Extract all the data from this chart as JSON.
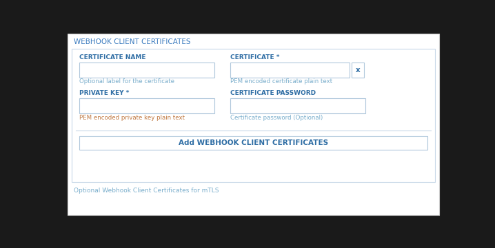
{
  "bg_color": "#1a1a1a",
  "panel_bg": "#ffffff",
  "panel_border": "#cccccc",
  "inner_bg": "#ffffff",
  "inner_border": "#c8d8e8",
  "title_text": "WEBHOOK CLIENT CERTIFICATES",
  "title_color": "#3a7bbf",
  "title_fontsize": 7.5,
  "field_label_color": "#2e6da4",
  "field_label_fontsize": 6.5,
  "hint_fontsize": 6.2,
  "input_border": "#b0c8dc",
  "input_bg": "#ffffff",
  "fields_row1": [
    {
      "label": "CERTIFICATE NAME",
      "hint": "Optional label for the certificate",
      "hint_col": "#7aaecc"
    },
    {
      "label": "CERTIFICATE *",
      "hint": "PEM encoded certificate plain text",
      "hint_col": "#7aaecc"
    }
  ],
  "fields_row2": [
    {
      "label": "PRIVATE KEY *",
      "hint": "PEM encoded private key plain text",
      "hint_col": "#c07840"
    },
    {
      "label": "CERTIFICATE PASSWORD",
      "hint": "Certificate password (Optional)",
      "hint_col": "#7aaecc"
    }
  ],
  "x_button_label": "x",
  "x_button_color": "#2e6da4",
  "x_button_border": "#b0c8dc",
  "add_button_text": "Add WEBHOOK CLIENT CERTIFICATES",
  "add_button_color": "#2e6da4",
  "add_button_border": "#b0c8dc",
  "add_button_bg": "#ffffff",
  "footer_text": "Optional Webhook Client Certificates for mTLS",
  "footer_color": "#7aaecc",
  "footer_fontsize": 6.5,
  "separator_color": "#c8d8e8"
}
